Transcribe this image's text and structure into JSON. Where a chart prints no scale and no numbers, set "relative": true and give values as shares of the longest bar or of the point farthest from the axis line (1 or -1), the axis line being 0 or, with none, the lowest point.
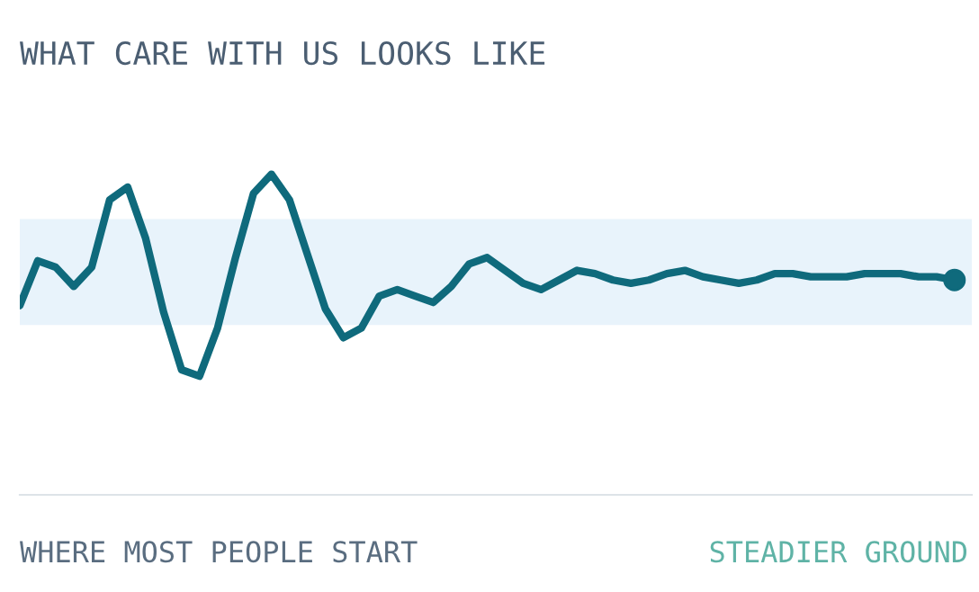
{
  "chart_data": {
    "type": "line",
    "title": "WHAT CARE WITH US LOOKS LIKE",
    "relative": true,
    "annotations": [
      "WHERE MOST PEOPLE START",
      "STEADIER GROUND"
    ],
    "bands": [
      {
        "axis": "y",
        "from": 0.53,
        "to": 0.86,
        "color": "#e8f3fb"
      }
    ],
    "categories": [
      null,
      null,
      null,
      null,
      null,
      null,
      null,
      null,
      null,
      null,
      null,
      null,
      null,
      null,
      null,
      null,
      null,
      null,
      null,
      null,
      null,
      null,
      null,
      null,
      null,
      null,
      null,
      null,
      null,
      null,
      null,
      null,
      null,
      null,
      null,
      null,
      null,
      null,
      null,
      null,
      null,
      null,
      null,
      null,
      null,
      null,
      null,
      null,
      null,
      null,
      null,
      null,
      null
    ],
    "series": [
      {
        "color": "#0f6a7c",
        "values": [
          0.59,
          0.73,
          0.71,
          0.65,
          0.71,
          0.92,
          0.96,
          0.8,
          0.57,
          0.39,
          0.37,
          0.52,
          0.74,
          0.94,
          1.0,
          0.92,
          0.75,
          0.58,
          0.49,
          0.52,
          0.62,
          0.64,
          0.62,
          0.6,
          0.65,
          0.72,
          0.74,
          0.7,
          0.66,
          0.64,
          0.67,
          0.7,
          0.69,
          0.67,
          0.66,
          0.67,
          0.69,
          0.7,
          0.68,
          0.67,
          0.66,
          0.67,
          0.69,
          0.69,
          0.68,
          0.68,
          0.68,
          0.69,
          0.69,
          0.69,
          0.68,
          0.68,
          0.67
        ]
      }
    ]
  }
}
